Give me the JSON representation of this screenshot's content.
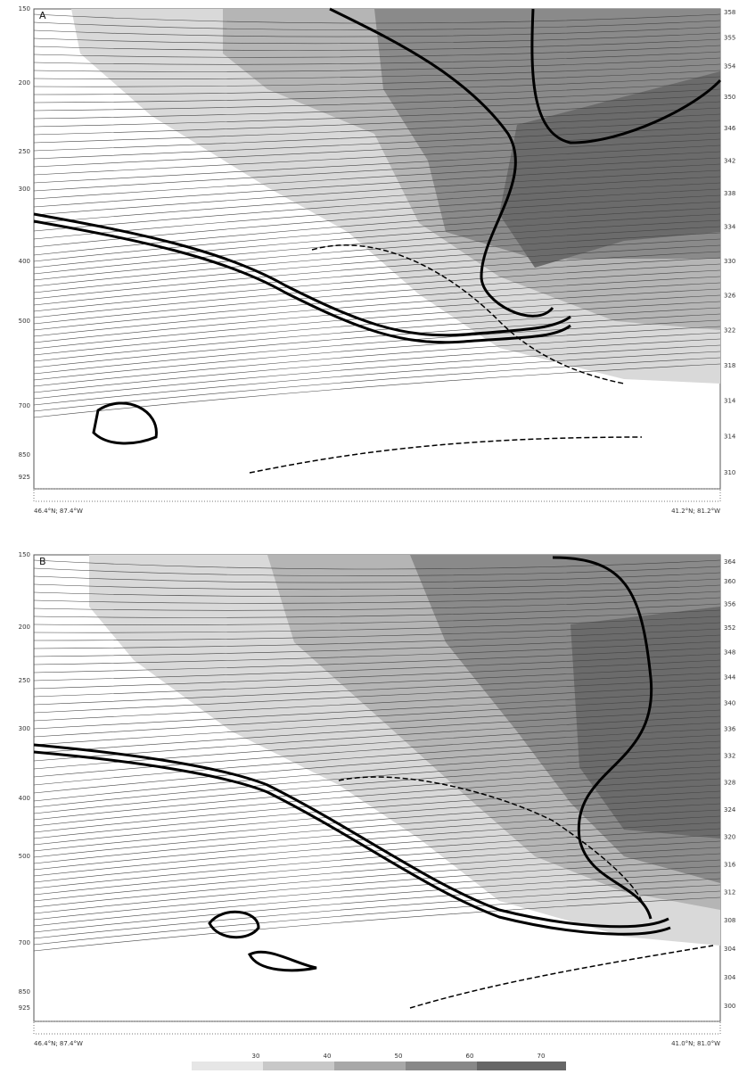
{
  "panels": [
    {
      "label": "A",
      "pressure_ticks": [
        "150",
        "200",
        "250",
        "300",
        "400",
        "500",
        "700",
        "850",
        "925"
      ],
      "theta_labels": [
        "358",
        "355",
        "354",
        "350",
        "346",
        "342",
        "338",
        "334",
        "330",
        "326",
        "322",
        "318",
        "314",
        "314",
        "310"
      ],
      "left_end": "46.4°N; 87.4°W",
      "right_end": "41.2°N; 81.2°W"
    },
    {
      "label": "B",
      "pressure_ticks": [
        "150",
        "200",
        "250",
        "300",
        "400",
        "500",
        "700",
        "850",
        "925"
      ],
      "theta_labels": [
        "364",
        "360",
        "356",
        "352",
        "348",
        "344",
        "340",
        "336",
        "332",
        "328",
        "324",
        "320",
        "316",
        "312",
        "308",
        "304",
        "304",
        "300"
      ],
      "left_end": "46.4°N; 87.4°W",
      "right_end": "41.0°N; 81.0°W"
    }
  ],
  "colorbar": {
    "ticks": [
      "30",
      "40",
      "50",
      "60",
      "70"
    ]
  }
}
